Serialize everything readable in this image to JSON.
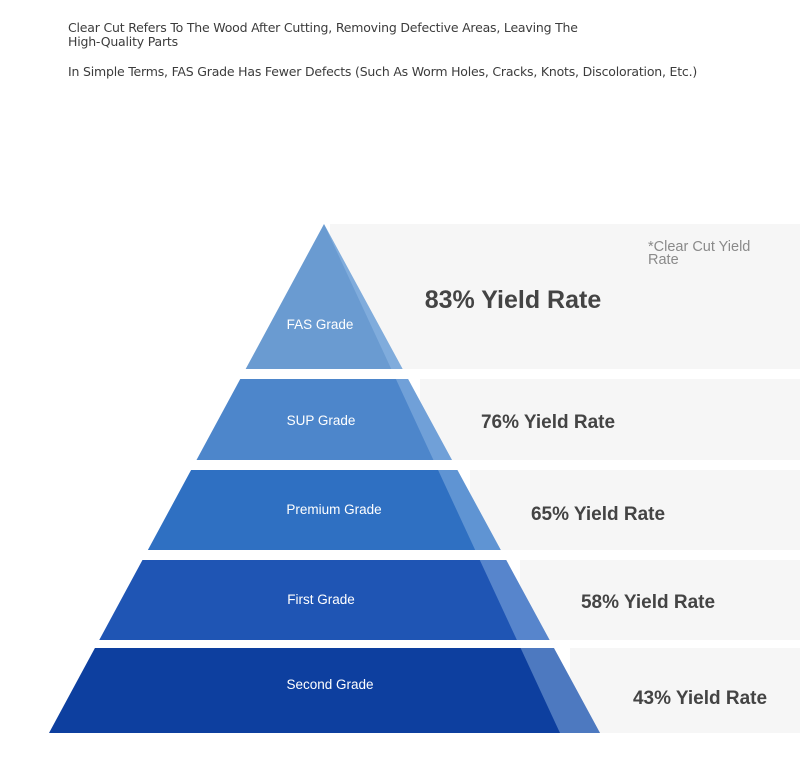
{
  "intro": {
    "line1": "Clear Cut Refers To The Wood After Cutting, Removing Defective Areas, Leaving The High-Quality Parts",
    "line2": "In Simple Terms, FAS Grade Has Fewer Defects (Such As Worm Holes, Cracks, Knots, Discoloration, Etc.)"
  },
  "note": {
    "line1": "*Clear Cut Yield",
    "line2": "Rate"
  },
  "tiers": [
    {
      "grade": "FAS Grade",
      "yield": "83% Yield Rate",
      "color": "#6a9bd1"
    },
    {
      "grade": "SUP Grade",
      "yield": "76% Yield Rate",
      "color": "#4d86cb"
    },
    {
      "grade": "Premium Grade",
      "yield": "65% Yield Rate",
      "color": "#2f70c2"
    },
    {
      "grade": "First Grade",
      "yield": "58% Yield Rate",
      "color": "#1f55b4"
    },
    {
      "grade": "Second Grade",
      "yield": "43% Yield Rate",
      "color": "#0d3f9f"
    }
  ],
  "colors": {
    "band": "#f6f6f6",
    "highlight": "#9cc0e8",
    "text": "#444444"
  }
}
